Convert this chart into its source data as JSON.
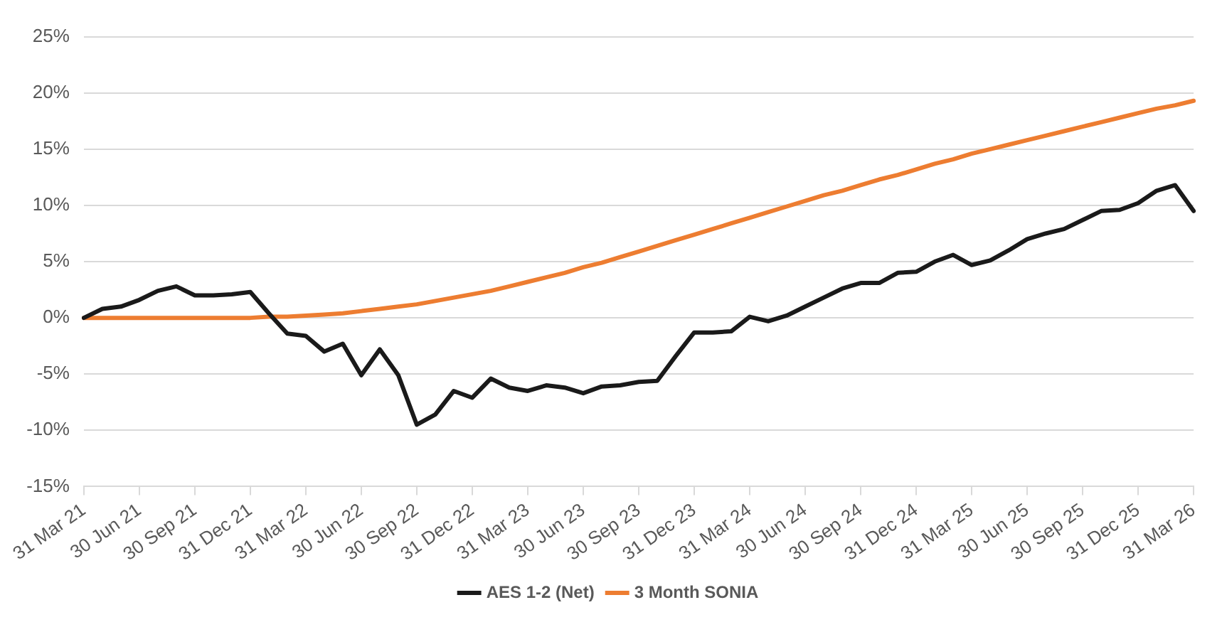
{
  "chart_data": {
    "type": "line",
    "categories": [
      "31 Mar 21",
      null,
      null,
      "30 Jun 21",
      null,
      null,
      "30 Sep 21",
      null,
      null,
      "31 Dec 21",
      null,
      null,
      "31 Mar 22",
      null,
      null,
      "30 Jun 22",
      null,
      null,
      "30 Sep 22",
      null,
      null,
      "31 Dec 22",
      null,
      null,
      "31 Mar 23",
      null,
      null,
      "30 Jun 23",
      null,
      null,
      "30 Sep 23",
      null,
      null,
      "31 Dec 23",
      null,
      null,
      "31 Mar 24",
      null,
      null,
      "30 Jun 24",
      null,
      null,
      "30 Sep 24",
      null,
      null,
      "31 Dec 24",
      null,
      null,
      "31 Mar 25",
      null,
      null,
      "30 Jun 25",
      null,
      null,
      "30 Sep 25",
      null,
      null,
      "31 Dec 25",
      null,
      null,
      "31 Mar 26"
    ],
    "series": [
      {
        "name": "AES 1-2 (Net)",
        "color": "#1a1a1a",
        "values": [
          0,
          0.8,
          1.0,
          1.6,
          2.4,
          2.8,
          2.0,
          2.0,
          2.1,
          2.3,
          0.4,
          -1.4,
          -1.6,
          -3.0,
          -2.3,
          -5.1,
          -2.8,
          -5.1,
          -9.5,
          -8.6,
          -6.5,
          -7.1,
          -5.4,
          -6.2,
          -6.5,
          -6.0,
          -6.2,
          -6.7,
          -6.1,
          -6.0,
          -5.7,
          -5.6,
          -3.4,
          -1.3,
          -1.3,
          -1.2,
          0.1,
          -0.3,
          0.2,
          1.0,
          1.8,
          2.6,
          3.1,
          3.1,
          4.0,
          4.1,
          5.0,
          5.6,
          4.7,
          5.1,
          6.0,
          7.0,
          7.5,
          7.9,
          8.7,
          9.5,
          9.6,
          10.2,
          11.3,
          11.8,
          9.5
        ]
      },
      {
        "name": "3 Month SONIA",
        "color": "#ed7d31",
        "values": [
          0,
          0,
          0,
          0,
          0,
          0,
          0,
          0,
          0,
          0,
          0.1,
          0.1,
          0.2,
          0.3,
          0.4,
          0.6,
          0.8,
          1.0,
          1.2,
          1.5,
          1.8,
          2.1,
          2.4,
          2.8,
          3.2,
          3.6,
          4.0,
          4.5,
          4.9,
          5.4,
          5.9,
          6.4,
          6.9,
          7.4,
          7.9,
          8.4,
          8.9,
          9.4,
          9.9,
          10.4,
          10.9,
          11.3,
          11.8,
          12.3,
          12.7,
          13.2,
          13.7,
          14.1,
          14.6,
          15.0,
          15.4,
          15.8,
          16.2,
          16.6,
          17.0,
          17.4,
          17.8,
          18.2,
          18.6,
          18.9,
          19.3
        ]
      }
    ],
    "ylim": [
      -15,
      25
    ],
    "yticks": [
      {
        "value": -15,
        "label": "-15%"
      },
      {
        "value": -10,
        "label": "-10%"
      },
      {
        "value": -5,
        "label": "-5%"
      },
      {
        "value": 0,
        "label": "0%"
      },
      {
        "value": 5,
        "label": "5%"
      },
      {
        "value": 10,
        "label": "10%"
      },
      {
        "value": 15,
        "label": "15%"
      },
      {
        "value": 20,
        "label": "20%"
      },
      {
        "value": 25,
        "label": "25%"
      }
    ],
    "grid": "y",
    "legend": "bottom",
    "marker": "none",
    "line_style": "solid"
  }
}
